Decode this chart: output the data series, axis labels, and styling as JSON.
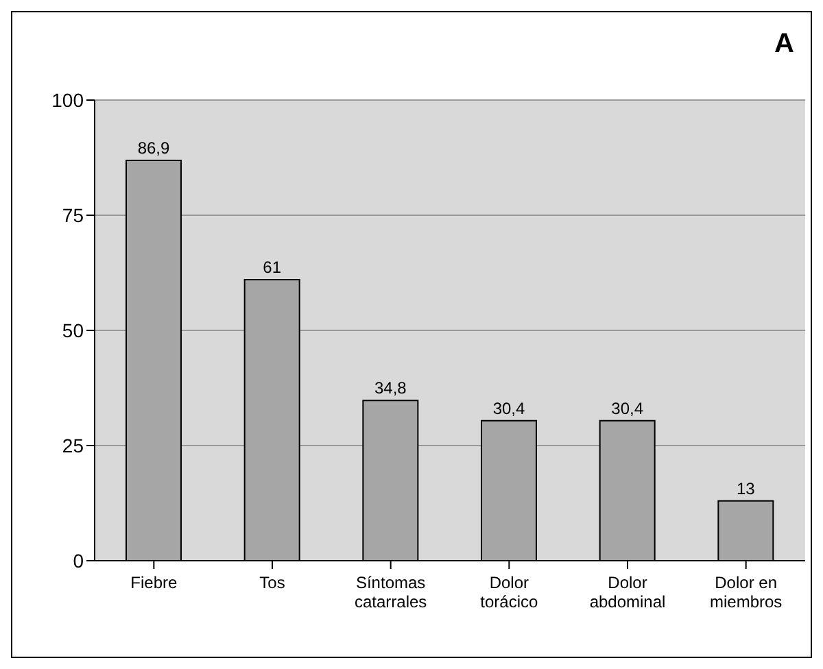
{
  "chart_data": {
    "type": "bar",
    "title": "A",
    "categories": [
      "Fiebre",
      "Tos",
      "Síntomas catarrales",
      "Dolor torácico",
      "Dolor abdominal",
      "Dolor en miembros"
    ],
    "values": [
      86.9,
      61,
      34.8,
      30.4,
      30.4,
      13
    ],
    "value_labels": [
      "86,9",
      "61",
      "34,8",
      "30,4",
      "30,4",
      "13"
    ],
    "color": "#a6a6a6",
    "ylim": [
      0,
      100
    ],
    "yticks": [
      0,
      25,
      50,
      75,
      100
    ],
    "grid": "y"
  }
}
